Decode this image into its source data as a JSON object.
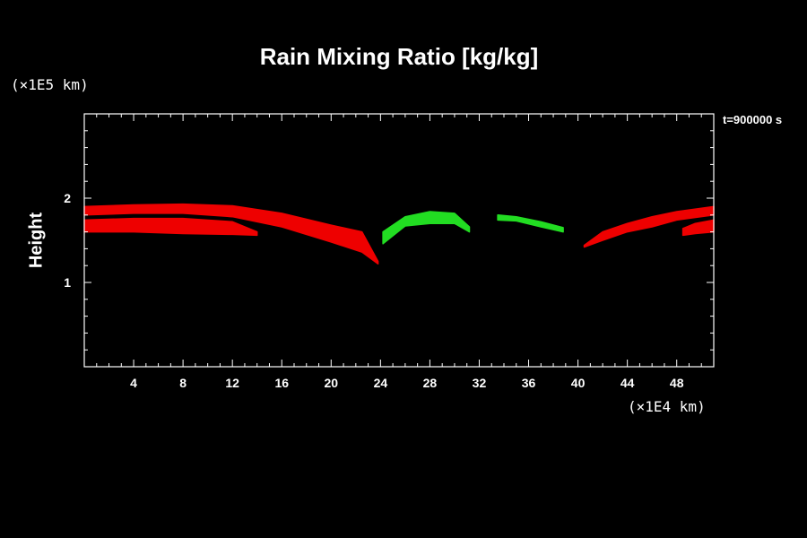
{
  "title": "Rain Mixing Ratio [kg/kg]",
  "time_label": "t=900000 s",
  "colors": {
    "background": "#000000",
    "rain_red": "#ee0000",
    "rain_green": "#22dd22",
    "axis": "#ffffff"
  },
  "chart_data": {
    "type": "contour",
    "title": "Rain Mixing Ratio [kg/kg]",
    "ylabel": "Height",
    "y_unit": "(×1E5 km)",
    "x_unit": "(×1E4 km)",
    "xlim": [
      0,
      51
    ],
    "ylim": [
      0,
      3
    ],
    "x_ticks": [
      4,
      8,
      12,
      16,
      20,
      24,
      28,
      32,
      36,
      40,
      44,
      48
    ],
    "y_ticks": [
      1,
      2
    ],
    "grid": false,
    "bands": [
      {
        "color": "red",
        "x": [
          0,
          4,
          8,
          12,
          16,
          20,
          22.5,
          23.8
        ],
        "y_top": [
          1.9,
          1.92,
          1.93,
          1.91,
          1.82,
          1.68,
          1.6,
          1.25
        ],
        "y_bottom": [
          1.8,
          1.82,
          1.82,
          1.78,
          1.66,
          1.48,
          1.36,
          1.22
        ]
      },
      {
        "color": "red",
        "x": [
          0,
          4,
          8,
          12,
          14
        ],
        "y_top": [
          1.74,
          1.76,
          1.76,
          1.72,
          1.6
        ],
        "y_bottom": [
          1.6,
          1.6,
          1.58,
          1.57,
          1.56
        ]
      },
      {
        "color": "green",
        "x": [
          24.2,
          26,
          28,
          30,
          31.2
        ],
        "y_top": [
          1.6,
          1.78,
          1.84,
          1.82,
          1.66
        ],
        "y_bottom": [
          1.46,
          1.67,
          1.7,
          1.7,
          1.6
        ]
      },
      {
        "color": "green",
        "x": [
          33.5,
          35,
          37,
          38.8
        ],
        "y_top": [
          1.8,
          1.78,
          1.72,
          1.65
        ],
        "y_bottom": [
          1.74,
          1.73,
          1.66,
          1.6
        ]
      },
      {
        "color": "red",
        "x": [
          40.5,
          42,
          44,
          46,
          48,
          51
        ],
        "y_top": [
          1.44,
          1.6,
          1.7,
          1.78,
          1.84,
          1.9
        ],
        "y_bottom": [
          1.42,
          1.5,
          1.6,
          1.66,
          1.74,
          1.8
        ]
      },
      {
        "color": "red",
        "x": [
          48.5,
          49.5,
          51
        ],
        "y_top": [
          1.64,
          1.7,
          1.74
        ],
        "y_bottom": [
          1.56,
          1.58,
          1.6
        ]
      }
    ]
  }
}
